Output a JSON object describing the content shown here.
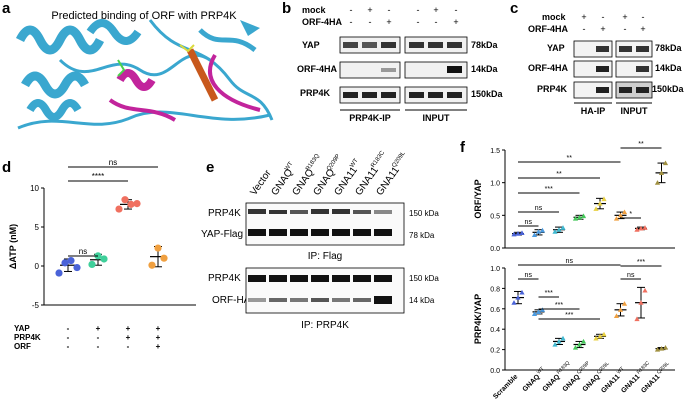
{
  "panels": {
    "a": {
      "letter": "a",
      "title": "Predicted binding of ORF with PRP4K"
    },
    "b": {
      "letter": "b",
      "conditions": [
        "mock",
        "ORF-4HA"
      ],
      "signs_mock": [
        "-",
        "+",
        "-",
        "-",
        "+",
        "-"
      ],
      "signs_orf": [
        "-",
        "-",
        "+",
        "-",
        "-",
        "+"
      ],
      "rows": [
        "YAP",
        "ORF-4HA",
        "PRP4K"
      ],
      "sizes": [
        "78kDa",
        "14kDa",
        "150kDa"
      ],
      "groups": [
        "PRP4K-IP",
        "INPUT"
      ]
    },
    "c": {
      "letter": "c",
      "conditions": [
        "mock",
        "ORF-4HA"
      ],
      "signs_mock": [
        "+",
        "-",
        "+",
        "-"
      ],
      "signs_orf": [
        "-",
        "+",
        "-",
        "+"
      ],
      "rows": [
        "YAP",
        "ORF-4HA",
        "PRP4K"
      ],
      "sizes": [
        "78kDa",
        "14kDa",
        "150kDa"
      ],
      "groups": [
        "HA-IP",
        "INPUT"
      ]
    },
    "d": {
      "letter": "d"
    },
    "e": {
      "letter": "e",
      "lanes": [
        "Vector",
        "GNAQ",
        "GNAQ",
        "GNAQ",
        "GNA11",
        "GNA11",
        "GNA11"
      ],
      "lane_sups": [
        "",
        "WT",
        "R183Q",
        "Q209P",
        "WT",
        "R183C",
        "Q209L"
      ],
      "blots": [
        "PRP4K",
        "YAP-Flag",
        "PRP4K",
        "ORF-HA"
      ],
      "sizes": [
        "150 kDa",
        "78 kDa",
        "150 kDa",
        "14 kDa"
      ],
      "ip_labels": [
        "IP: Flag",
        "IP: PRP4K"
      ]
    },
    "f": {
      "letter": "f",
      "xticks": [
        "Scramble",
        "GNAQ",
        "GNAQ",
        "GNAQ",
        "GNAQ",
        "GNA11",
        "GNA11",
        "GNA11"
      ],
      "xsups": [
        "",
        "WT",
        "R183Q",
        "Q209P",
        "Q209L",
        "WT",
        "R183C",
        "Q209L"
      ]
    }
  },
  "chart_data": [
    {
      "type": "scatter",
      "panel": "d",
      "ylabel": "ΔATP (nM)",
      "ylim": [
        -5,
        10
      ],
      "yticks": [
        "10",
        "5",
        "0",
        "-5"
      ],
      "condition_rows": [
        "YAP",
        "PRP4K",
        "ORF"
      ],
      "condition_signs": [
        [
          "-",
          "+",
          "+",
          "+"
        ],
        [
          "-",
          "-",
          "+",
          "+"
        ],
        [
          "-",
          "-",
          "-",
          "+"
        ]
      ],
      "groups": [
        {
          "mean": 0.1,
          "sd": 0.8,
          "points": [
            -0.9,
            0.4,
            0.7,
            -0.2
          ],
          "color": "#4a63d8"
        },
        {
          "mean": 0.8,
          "sd": 0.7,
          "points": [
            0.2,
            1.3,
            0.9
          ],
          "color": "#3fcf9a"
        },
        {
          "mean": 7.9,
          "sd": 0.6,
          "points": [
            7.3,
            8.5,
            7.9,
            8.0
          ],
          "color": "#f07060"
        },
        {
          "mean": 1.2,
          "sd": 1.3,
          "points": [
            0.1,
            2.3,
            1.0
          ],
          "color": "#f0a040"
        }
      ],
      "significance": [
        {
          "from": 0,
          "to": 3,
          "label": "ns"
        },
        {
          "from": 0,
          "to": 2,
          "label": "****"
        },
        {
          "from": 0,
          "to": 1,
          "label": "ns"
        }
      ]
    },
    {
      "type": "scatter",
      "panel": "f-top",
      "ylabel": "ORF/YAP",
      "ylim": [
        0,
        1.5
      ],
      "yticks": [
        "1.5",
        "1.0",
        "0.5",
        "0.0"
      ],
      "groups": [
        {
          "mean": 0.22,
          "sd": 0.02,
          "points": [
            0.21,
            0.22,
            0.23
          ],
          "color": "#4a63d8"
        },
        {
          "mean": 0.24,
          "sd": 0.04,
          "points": [
            0.2,
            0.25,
            0.27
          ],
          "color": "#4a9ae0"
        },
        {
          "mean": 0.28,
          "sd": 0.04,
          "points": [
            0.25,
            0.28,
            0.31
          ],
          "color": "#3fb8d0"
        },
        {
          "mean": 0.47,
          "sd": 0.03,
          "points": [
            0.45,
            0.47,
            0.49
          ],
          "color": "#45c85a"
        },
        {
          "mean": 0.68,
          "sd": 0.08,
          "points": [
            0.6,
            0.68,
            0.75
          ],
          "color": "#e8d040"
        },
        {
          "mean": 0.5,
          "sd": 0.05,
          "points": [
            0.45,
            0.5,
            0.55
          ],
          "color": "#f0a040"
        },
        {
          "mean": 0.3,
          "sd": 0.02,
          "points": [
            0.28,
            0.3,
            0.31
          ],
          "color": "#f07060"
        },
        {
          "mean": 1.15,
          "sd": 0.15,
          "points": [
            1.0,
            1.15,
            1.3
          ],
          "color": "#a09040"
        }
      ],
      "significance": [
        {
          "from": 0,
          "to": 1,
          "label": "ns"
        },
        {
          "from": 0,
          "to": 2,
          "label": "ns"
        },
        {
          "from": 0,
          "to": 3,
          "label": "***"
        },
        {
          "from": 0,
          "to": 4,
          "label": "**"
        },
        {
          "from": 0,
          "to": 5,
          "label": "**"
        },
        {
          "from": 5,
          "to": 6,
          "label": "*"
        },
        {
          "from": 5,
          "to": 7,
          "label": "**"
        }
      ]
    },
    {
      "type": "scatter",
      "panel": "f-bottom",
      "ylabel": "PRP4K/YAP",
      "ylim": [
        0,
        1.0
      ],
      "yticks": [
        "1.0",
        "0.8",
        "0.6",
        "0.4",
        "0.2",
        "0.0"
      ],
      "groups": [
        {
          "mean": 0.71,
          "sd": 0.06,
          "points": [
            0.66,
            0.71,
            0.76
          ],
          "color": "#4a63d8"
        },
        {
          "mean": 0.57,
          "sd": 0.02,
          "points": [
            0.55,
            0.57,
            0.59
          ],
          "color": "#4a9ae0"
        },
        {
          "mean": 0.28,
          "sd": 0.03,
          "points": [
            0.25,
            0.28,
            0.31
          ],
          "color": "#3fb8d0"
        },
        {
          "mean": 0.25,
          "sd": 0.03,
          "points": [
            0.22,
            0.25,
            0.28
          ],
          "color": "#45c85a"
        },
        {
          "mean": 0.33,
          "sd": 0.02,
          "points": [
            0.31,
            0.33,
            0.35
          ],
          "color": "#e8d040"
        },
        {
          "mean": 0.59,
          "sd": 0.06,
          "points": [
            0.53,
            0.59,
            0.65
          ],
          "color": "#f0a040"
        },
        {
          "mean": 0.66,
          "sd": 0.15,
          "points": [
            0.5,
            0.66,
            0.78
          ],
          "color": "#f07060"
        },
        {
          "mean": 0.21,
          "sd": 0.01,
          "points": [
            0.2,
            0.21,
            0.22
          ],
          "color": "#a09040"
        }
      ],
      "significance": [
        {
          "from": 0,
          "to": 1,
          "label": "ns"
        },
        {
          "from": 0,
          "to": 5,
          "label": "ns"
        },
        {
          "from": 1,
          "to": 2,
          "label": "***"
        },
        {
          "from": 1,
          "to": 3,
          "label": "***"
        },
        {
          "from": 1,
          "to": 4,
          "label": "***"
        },
        {
          "from": 5,
          "to": 6,
          "label": "ns"
        },
        {
          "from": 5,
          "to": 7,
          "label": "***"
        }
      ]
    }
  ]
}
